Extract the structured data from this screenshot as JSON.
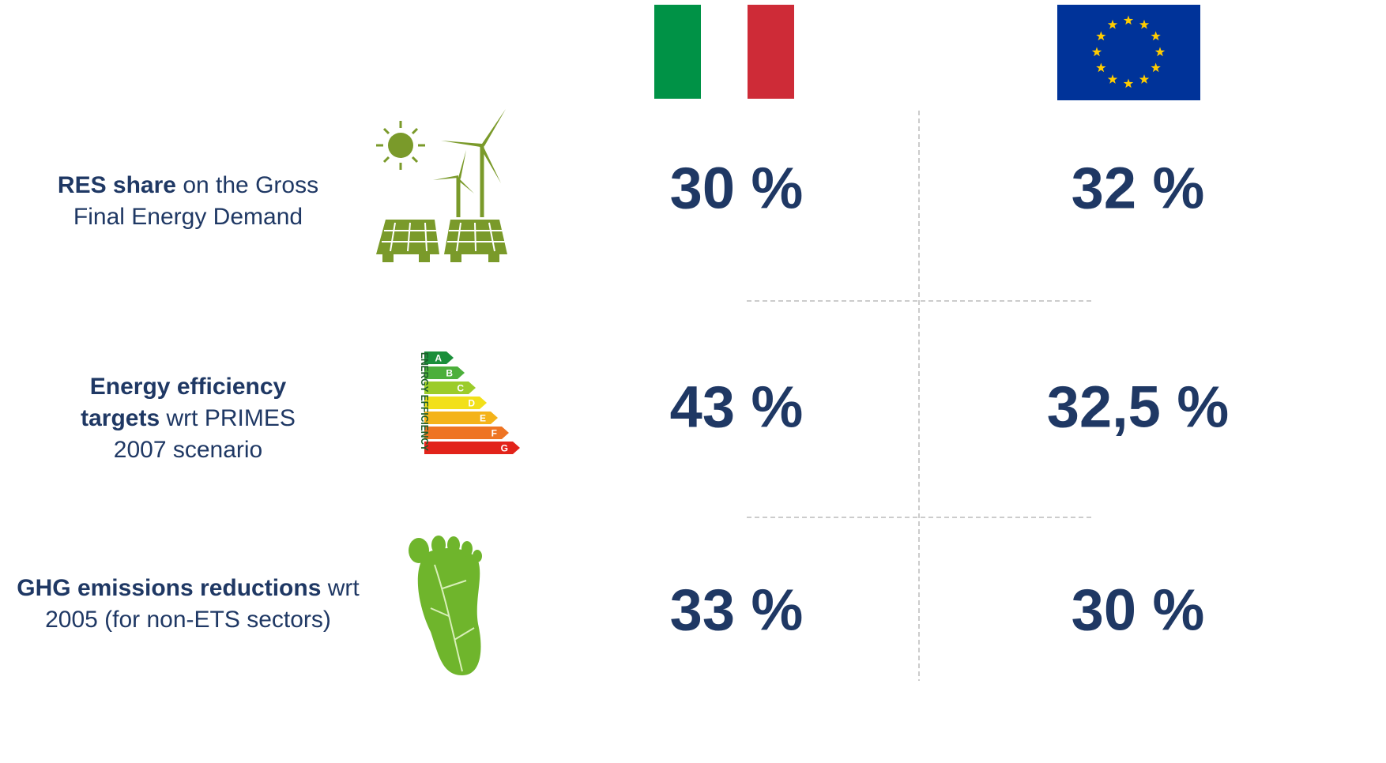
{
  "rows": [
    {
      "label_bold": "RES share",
      "label_rest": "on the Gross Final Energy Demand",
      "italy": "30 %",
      "eu": "32 %"
    },
    {
      "label_bold": "Energy efficiency targets",
      "label_rest": "wrt PRIMES 2007 scenario",
      "italy": "43 %",
      "eu": "32,5 %"
    },
    {
      "label_bold": "GHG emissions reductions",
      "label_rest": "wrt 2005 (for non-ETS sectors)",
      "italy": "33 %",
      "eu": "30 %"
    }
  ],
  "efficiency_icon": {
    "caption": "ENERGY EFFICIENCY",
    "grades": [
      "A",
      "B",
      "C",
      "D",
      "E",
      "F",
      "G"
    ]
  }
}
